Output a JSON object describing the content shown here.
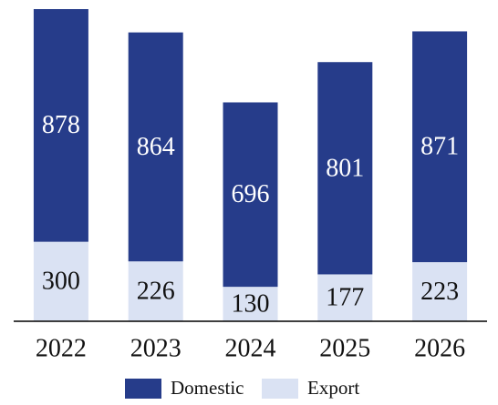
{
  "chart_data": {
    "type": "stacked_bar",
    "categories": [
      "2022",
      "2023",
      "2024",
      "2025",
      "2026"
    ],
    "series": [
      {
        "name": "Domestic",
        "color": "#263c8a",
        "values": [
          878,
          864,
          696,
          801,
          871
        ]
      },
      {
        "name": "Export",
        "color": "#dae2f3",
        "values": [
          300,
          226,
          130,
          177,
          223
        ]
      }
    ]
  }
}
